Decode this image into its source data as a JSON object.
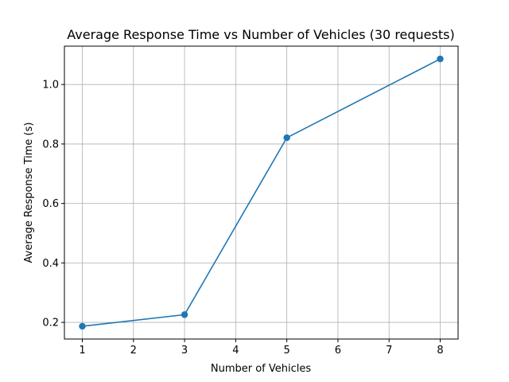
{
  "chart_data": {
    "type": "line",
    "title": "Average Response Time vs Number of Vehicles (30 requests)",
    "xlabel": "Number of Vehicles",
    "ylabel": "Average Response Time (s)",
    "x": [
      1,
      3,
      5,
      8
    ],
    "series": [
      {
        "values": [
          0.187,
          0.226,
          0.821,
          1.086
        ]
      }
    ],
    "xlim": [
      0.65,
      8.35
    ],
    "ylim": [
      0.144,
      1.129
    ],
    "xticks": [
      1,
      2,
      3,
      4,
      5,
      6,
      7,
      8
    ],
    "xtick_labels": [
      "1",
      "2",
      "3",
      "4",
      "5",
      "6",
      "7",
      "8"
    ],
    "yticks": [
      0.2,
      0.4,
      0.6,
      0.8,
      1.0
    ],
    "ytick_labels": [
      "0.2",
      "0.4",
      "0.6",
      "0.8",
      "1.0"
    ],
    "grid": true,
    "legend": "none",
    "line_color": "#1f77b4",
    "marker": "circle"
  }
}
